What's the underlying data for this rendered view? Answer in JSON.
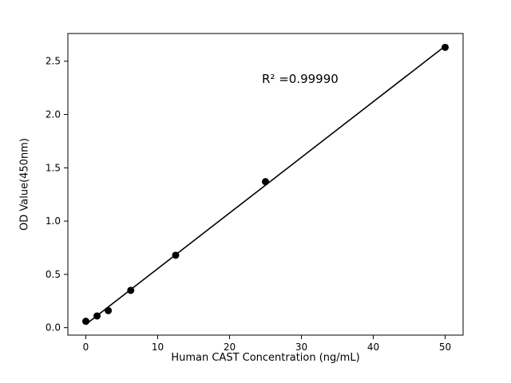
{
  "chart_data": {
    "type": "scatter",
    "x": [
      0,
      1.5625,
      3.125,
      6.25,
      12.5,
      25,
      50
    ],
    "y": [
      0.06,
      0.11,
      0.16,
      0.35,
      0.68,
      1.37,
      2.63
    ],
    "fit": "linear",
    "annotation": {
      "text": "R² =0.99990",
      "x": 24.5,
      "y": 2.33
    },
    "xlabel": "Human CAST Concentration (ng/mL)",
    "ylabel": "OD Value(450nm)",
    "xticks": [
      0,
      10,
      20,
      30,
      40,
      50
    ],
    "yticks": [
      0.0,
      0.5,
      1.0,
      1.5,
      2.0,
      2.5
    ],
    "xlim": [
      -2.5,
      52.5
    ],
    "ylim": [
      -0.07,
      2.76
    ],
    "grid": false,
    "legend": "none",
    "marker_color": "#000000",
    "line_color": "#000000",
    "background": "#ffffff"
  }
}
